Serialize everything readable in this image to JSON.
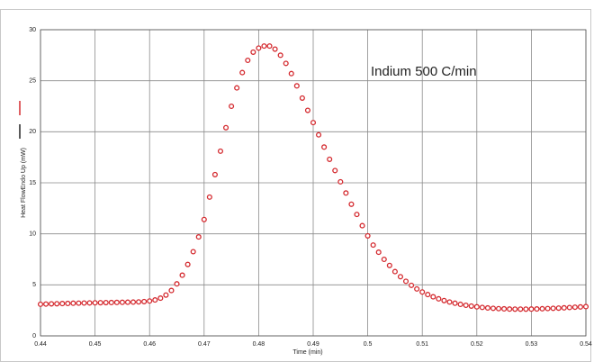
{
  "chart_data": {
    "type": "scatter",
    "annotation": "Indium 500 C/min",
    "xlabel": "Time (min)",
    "ylabel": "Heat FlowEndo Up (mW)",
    "color": "#d42a2f",
    "x": [
      0.44,
      0.441,
      0.442,
      0.443,
      0.444,
      0.445,
      0.446,
      0.447,
      0.448,
      0.449,
      0.45,
      0.451,
      0.452,
      0.453,
      0.454,
      0.455,
      0.456,
      0.457,
      0.458,
      0.459,
      0.46,
      0.461,
      0.462,
      0.463,
      0.464,
      0.465,
      0.466,
      0.467,
      0.468,
      0.469,
      0.47,
      0.471,
      0.472,
      0.473,
      0.474,
      0.475,
      0.476,
      0.477,
      0.478,
      0.479,
      0.48,
      0.481,
      0.482,
      0.483,
      0.484,
      0.485,
      0.486,
      0.487,
      0.488,
      0.489,
      0.49,
      0.491,
      0.492,
      0.493,
      0.494,
      0.495,
      0.496,
      0.497,
      0.498,
      0.499,
      0.5,
      0.501,
      0.502,
      0.503,
      0.504,
      0.505,
      0.506,
      0.507,
      0.508,
      0.509,
      0.51,
      0.511,
      0.512,
      0.513,
      0.514,
      0.515,
      0.516,
      0.517,
      0.518,
      0.519,
      0.52,
      0.521,
      0.522,
      0.523,
      0.524,
      0.525,
      0.526,
      0.527,
      0.528,
      0.529,
      0.53,
      0.531,
      0.532,
      0.533,
      0.534,
      0.535,
      0.536,
      0.537,
      0.538,
      0.539,
      0.54
    ],
    "values": [
      3.1,
      3.12,
      3.14,
      3.15,
      3.17,
      3.18,
      3.2,
      3.21,
      3.22,
      3.23,
      3.24,
      3.25,
      3.26,
      3.27,
      3.28,
      3.29,
      3.3,
      3.31,
      3.33,
      3.36,
      3.42,
      3.52,
      3.7,
      4.0,
      4.45,
      5.1,
      5.95,
      7.0,
      8.25,
      9.7,
      11.4,
      13.6,
      15.8,
      18.1,
      20.4,
      22.5,
      24.3,
      25.8,
      27.0,
      27.8,
      28.2,
      28.4,
      28.4,
      28.1,
      27.5,
      26.7,
      25.7,
      24.5,
      23.3,
      22.1,
      20.9,
      19.7,
      18.5,
      17.3,
      16.2,
      15.1,
      14.0,
      12.9,
      11.9,
      10.8,
      9.8,
      8.9,
      8.2,
      7.5,
      6.9,
      6.3,
      5.8,
      5.35,
      4.95,
      4.6,
      4.3,
      4.05,
      3.83,
      3.63,
      3.46,
      3.32,
      3.2,
      3.09,
      3.0,
      2.92,
      2.85,
      2.79,
      2.74,
      2.7,
      2.67,
      2.65,
      2.63,
      2.62,
      2.62,
      2.62,
      2.63,
      2.64,
      2.66,
      2.68,
      2.7,
      2.72,
      2.75,
      2.78,
      2.81,
      2.84,
      2.87
    ],
    "xlim": [
      0.44,
      0.54
    ],
    "xticks": [
      0.44,
      0.45,
      0.46,
      0.47,
      0.48,
      0.49,
      0.5,
      0.51,
      0.52,
      0.53,
      0.54
    ],
    "ylim": [
      0,
      30
    ],
    "yticks": [
      0,
      5,
      10,
      15,
      20,
      25,
      30
    ],
    "grid": true
  }
}
